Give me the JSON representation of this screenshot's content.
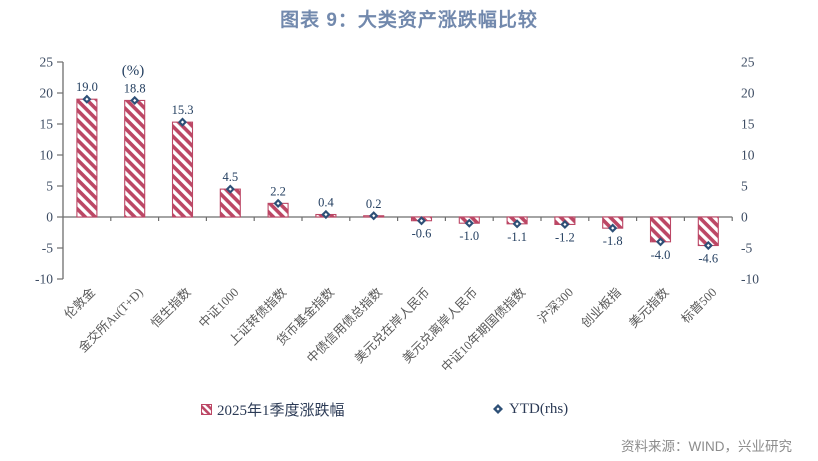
{
  "page": {
    "title": "图表 9：大类资产涨跌幅比较",
    "source": "资料来源：WIND，兴业研究"
  },
  "chart_data": {
    "type": "bar",
    "subtype": "bar-with-diamond-markers",
    "unit_label": "(%)",
    "categories": [
      "伦敦金",
      "金交所Au(T+D)",
      "恒生指数",
      "中证1000",
      "上证转债指数",
      "货币基金指数",
      "中债信用债总指数",
      "美元兑在岸人民币",
      "美元兑离岸人民币",
      "中证10年期国债指数",
      "沪深300",
      "创业板指",
      "美元指数",
      "标普500"
    ],
    "series": [
      {
        "name": "2025年1季度涨跌幅",
        "type": "bar",
        "axis": "left",
        "values": [
          19.0,
          18.8,
          15.3,
          4.5,
          2.2,
          0.4,
          0.2,
          -0.6,
          -1.0,
          -1.1,
          -1.2,
          -1.8,
          -4.0,
          -4.6
        ]
      },
      {
        "name": "YTD(rhs)",
        "type": "scatter",
        "marker": "diamond",
        "axis": "right",
        "values": [
          19.0,
          18.8,
          15.3,
          4.5,
          2.2,
          0.4,
          0.2,
          -0.6,
          -1.0,
          -1.1,
          -1.2,
          -1.8,
          -4.0,
          -4.6
        ]
      }
    ],
    "data_labels": [
      "19.0",
      "18.8",
      "15.3",
      "4.5",
      "2.2",
      "0.4",
      "0.2",
      "-0.6",
      "-1.0",
      "-1.1",
      "-1.2",
      "-1.8",
      "-4.0",
      "-4.6"
    ],
    "left_axis": {
      "min": -10,
      "max": 25,
      "step": 5,
      "ticks": [
        25,
        20,
        15,
        10,
        5,
        0,
        -5,
        -10
      ]
    },
    "right_axis": {
      "min": -10,
      "max": 25,
      "step": 5,
      "ticks": [
        25,
        20,
        15,
        10,
        5,
        0,
        -5,
        -10
      ]
    },
    "grid": false,
    "legend_position": "bottom",
    "legend": [
      "2025年1季度涨跌幅",
      "YTD(rhs)"
    ]
  },
  "colors": {
    "title": "#7289ad",
    "bar": "#bc4765",
    "marker": "#2e5077",
    "marker_center": "#ffffff",
    "axis_line": "#6e6e6e",
    "tick_label": "#3d4c63",
    "value_label": "#243f60",
    "category_label": "#595959",
    "legend_text": "#2b3a55",
    "source_text": "#8c8c8c"
  }
}
